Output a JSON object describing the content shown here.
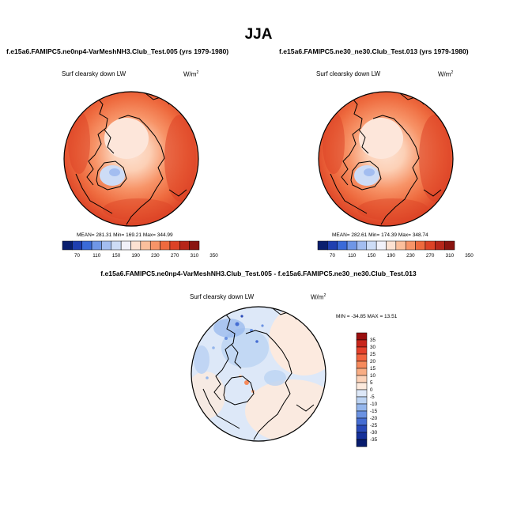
{
  "page": {
    "title": "JJA"
  },
  "panels": {
    "left": {
      "case_title": "f.e15a6.FAMIPC5.ne0np4-VarMeshNH3.Club_Test.005 (yrs 1979-1980)",
      "variable": "Surf clearsky down LW",
      "units": "W/m",
      "units_sup": "2",
      "stats": "MEAN= 281.31   Min= 169.21   Max= 344.99"
    },
    "right": {
      "case_title": "f.e15a6.FAMIPC5.ne30_ne30.Club_Test.013 (yrs 1979-1980)",
      "variable": "Surf clearsky down LW",
      "units": "W/m",
      "units_sup": "2",
      "stats": "MEAN= 282.61   Min= 174.39   Max= 348.74"
    },
    "diff": {
      "case_title": "f.e15a6.FAMIPC5.ne0np4-VarMeshNH3.Club_Test.005 - f.e15a6.FAMIPC5.ne30_ne30.Club_Test.013",
      "variable": "Surf clearsky down LW",
      "units": "W/m",
      "units_sup": "2",
      "minmax": "MIN = -34.85  MAX =   13.51"
    }
  },
  "chart_data": [
    {
      "type": "heatmap",
      "projection": "north-polar-stereographic",
      "title": "Surf clearsky down LW",
      "case": "f.e15a6.FAMIPC5.ne0np4-VarMeshNH3.Club_Test.005 (yrs 1979-1980)",
      "units": "W/m2",
      "mean": 281.31,
      "min": 169.21,
      "max": 344.99,
      "colorbar": {
        "orientation": "horizontal",
        "levels": [
          70,
          110,
          150,
          190,
          230,
          270,
          310,
          350
        ],
        "colors": [
          "#0a1f6e",
          "#1f3fb0",
          "#3a6ad8",
          "#6f96e6",
          "#a3bdf0",
          "#cddcf6",
          "#f1f1f9",
          "#fde2d2",
          "#fbbf9c",
          "#f79468",
          "#ee6a3e",
          "#dc4226",
          "#b6261a",
          "#8a1410"
        ]
      }
    },
    {
      "type": "heatmap",
      "projection": "north-polar-stereographic",
      "title": "Surf clearsky down LW",
      "case": "f.e15a6.FAMIPC5.ne30_ne30.Club_Test.013 (yrs 1979-1980)",
      "units": "W/m2",
      "mean": 282.61,
      "min": 174.39,
      "max": 348.74,
      "colorbar": {
        "orientation": "horizontal",
        "levels": [
          70,
          110,
          150,
          190,
          230,
          270,
          310,
          350
        ],
        "colors": [
          "#0a1f6e",
          "#1f3fb0",
          "#3a6ad8",
          "#6f96e6",
          "#a3bdf0",
          "#cddcf6",
          "#f1f1f9",
          "#fde2d2",
          "#fbbf9c",
          "#f79468",
          "#ee6a3e",
          "#dc4226",
          "#b6261a",
          "#8a1410"
        ]
      }
    },
    {
      "type": "heatmap",
      "projection": "north-polar-stereographic",
      "title": "Surf clearsky down LW",
      "case": "f.e15a6.FAMIPC5.ne0np4-VarMeshNH3.Club_Test.005 - f.e15a6.FAMIPC5.ne30_ne30.Club_Test.013",
      "units": "W/m2",
      "min": -34.85,
      "max": 13.51,
      "colorbar": {
        "orientation": "vertical",
        "levels": [
          35,
          30,
          25,
          20,
          15,
          10,
          5,
          0,
          -5,
          -10,
          -15,
          -20,
          -25,
          -30,
          -35
        ],
        "colors": [
          "#9a0f0f",
          "#c8251b",
          "#e4402b",
          "#f1643f",
          "#f68a5c",
          "#f9ad84",
          "#fcd2b8",
          "#fdeadd",
          "#dde8f8",
          "#bcd3f3",
          "#94b6ec",
          "#6b92e2",
          "#456dd3",
          "#2849b8",
          "#15309a",
          "#081c6e"
        ]
      }
    }
  ]
}
